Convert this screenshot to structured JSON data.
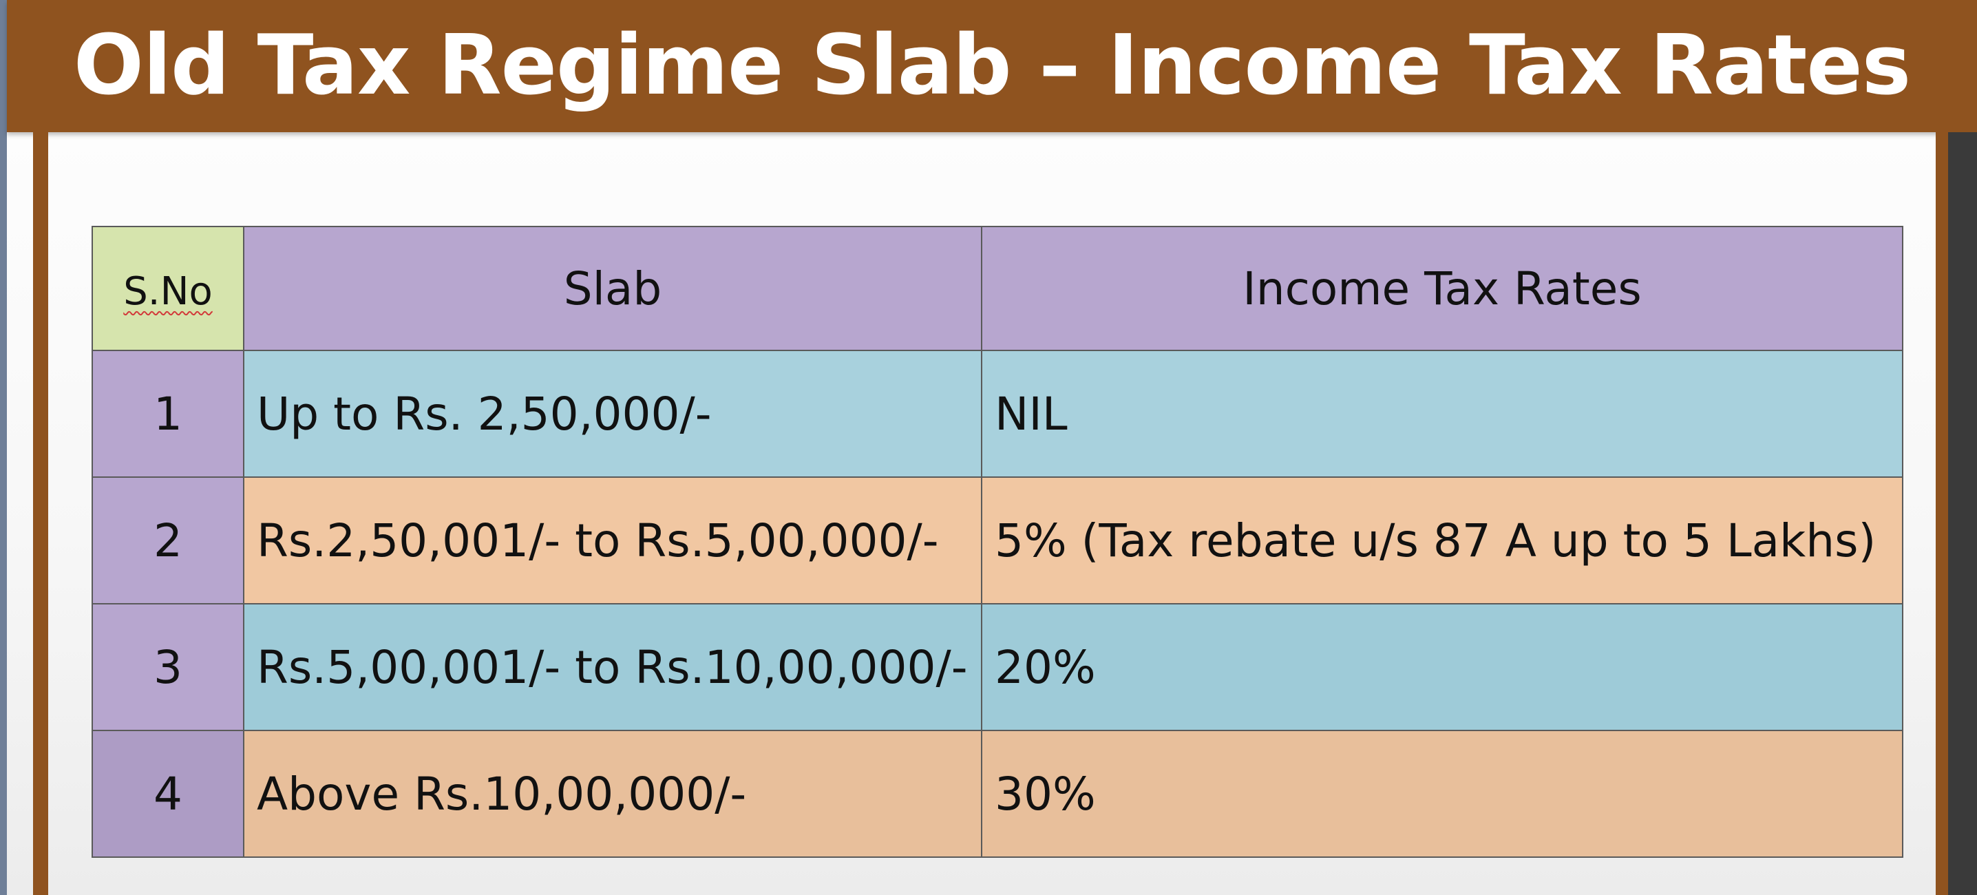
{
  "title": "Old Tax Regime Slab – Income Tax Rates",
  "table": {
    "headers": {
      "sno": "S.No",
      "slab": "Slab",
      "rate": "Income Tax Rates"
    },
    "rows": [
      {
        "sno": "1",
        "slab": "Up to Rs. 2,50,000/-",
        "rate": "NIL"
      },
      {
        "sno": "2",
        "slab": "Rs.2,50,001/- to Rs.5,00,000/-",
        "rate": "5% (Tax rebate u/s 87 A up to 5 Lakhs)"
      },
      {
        "sno": "3",
        "slab": "Rs.5,00,001/- to Rs.10,00,000/-",
        "rate": "20%"
      },
      {
        "sno": "4",
        "slab": "Above Rs.10,00,000/-",
        "rate": "30%"
      }
    ]
  },
  "colors": {
    "title_bar": "#8f531f",
    "header_purple": "#b7a6cf",
    "header_green": "#d6e4ad",
    "row_blue": "#a8d1dd",
    "row_peach": "#f1c7a2"
  }
}
